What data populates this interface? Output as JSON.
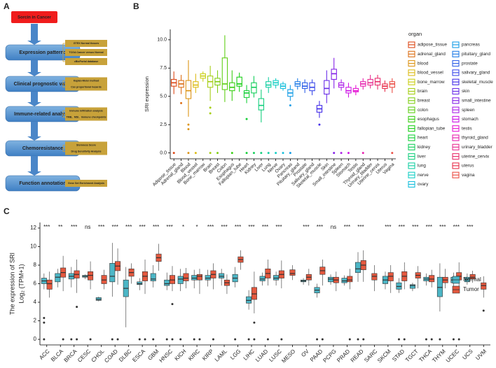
{
  "panel_labels": [
    "A",
    "B",
    "C"
  ],
  "flowchart": {
    "root": "Sorcin in Cancer",
    "steps": [
      {
        "label": "Expression patterns",
        "details": [
          "GTEX Normal tissues",
          "TCGA Cancer versus Normal",
          "cBioPortal database"
        ]
      },
      {
        "label": "Clinical prognostic value",
        "details": [
          "Kaplan-Meier method",
          "Cox proportional hazards"
        ]
      },
      {
        "label": "Immune-related analysis",
        "details": [
          "Immune infiltration analysis",
          "TMB、MSI、Immune checkpoints"
        ]
      },
      {
        "label": "Chemoresistance",
        "details": [
          "Stemness Score",
          "Drug Sensitivity Analysis"
        ]
      },
      {
        "label": "Function annotation",
        "details": [
          "Gene Set Enrichment Analysis"
        ]
      }
    ]
  },
  "chart_data": [
    {
      "type": "boxplot",
      "y_label": "SRI expression",
      "legend_title": "organ",
      "ylim": [
        -0.52,
        10.92
      ],
      "yticks": [
        {
          "value": 0,
          "label": "0.0"
        },
        {
          "value": 2.5,
          "label": "2.5"
        },
        {
          "value": 5,
          "label": "5.0"
        },
        {
          "value": 7.5,
          "label": "7.5"
        },
        {
          "value": 10,
          "label": "10.0"
        }
      ],
      "categories": [
        "Adipose_tissue",
        "Adrenal_gland",
        "Blood",
        "Blood_vessel",
        "Bone_marrow",
        "Brain",
        "Breast",
        "Colon",
        "Esophagus",
        "Fallopian_tube",
        "Heart",
        "Kidney",
        "Liver",
        "Lung",
        "Nerve",
        "Ovary",
        "Pancreas",
        "Pituitary_gland",
        "Prostate",
        "Salivary_gland",
        "Skeletal_muscle",
        "Skin",
        "Small_intestine",
        "Spleen",
        "Stomach",
        "Testis",
        "Thyroid_gland",
        "Urinary_bladder",
        "Uterine_cervix",
        "Uterus",
        "Vagina"
      ],
      "boxes": [
        {
          "name": "adipose_tissue",
          "color": "hsl(15,80%,48%)",
          "min": 5.2,
          "q1": 5.9,
          "median": 6.2,
          "q3": 6.5,
          "max": 7.2,
          "outliers": [
            0
          ]
        },
        {
          "name": "adrenal_gland",
          "color": "hsl(27,80%,48%)",
          "min": 5.2,
          "q1": 5.8,
          "median": 6.1,
          "q3": 6.4,
          "max": 6.9,
          "outliers": [
            4.4
          ]
        },
        {
          "name": "blood",
          "color": "hsl(38,80%,48%)",
          "min": 3.2,
          "q1": 4.8,
          "median": 5.5,
          "q3": 6.4,
          "max": 8.2,
          "outliers": [
            2.5,
            2.1,
            0
          ]
        },
        {
          "name": "blood_vessel",
          "color": "hsl(50,80%,48%)",
          "min": 5.3,
          "q1": 5.8,
          "median": 6.0,
          "q3": 6.3,
          "max": 7.0,
          "outliers": [
            0
          ]
        },
        {
          "name": "bone_marrow",
          "color": "hsl(61,80%,45%)",
          "min": 6.3,
          "q1": 6.6,
          "median": 6.8,
          "q3": 7.0,
          "max": 7.2,
          "outliers": []
        },
        {
          "name": "brain",
          "color": "hsl(73,80%,45%)",
          "min": 4.6,
          "q1": 5.8,
          "median": 6.3,
          "q3": 6.8,
          "max": 7.7,
          "outliers": [
            4.0,
            3.5,
            0
          ]
        },
        {
          "name": "breast",
          "color": "hsl(85,80%,45%)",
          "min": 5.3,
          "q1": 6.0,
          "median": 6.3,
          "q3": 6.6,
          "max": 7.3,
          "outliers": [
            0
          ]
        },
        {
          "name": "colon",
          "color": "hsl(96,80%,45%)",
          "min": 4.5,
          "q1": 5.6,
          "median": 6.1,
          "q3": 8.4,
          "max": 10.4,
          "outliers": []
        },
        {
          "name": "esophagus",
          "color": "hsl(108,80%,45%)",
          "min": 4.6,
          "q1": 5.5,
          "median": 5.8,
          "q3": 6.2,
          "max": 7.3,
          "outliers": [
            0
          ]
        },
        {
          "name": "fallopian_tube",
          "color": "hsl(119,80%,45%)",
          "min": 5.4,
          "q1": 5.9,
          "median": 6.1,
          "q3": 6.7,
          "max": 7.1,
          "outliers": []
        },
        {
          "name": "heart",
          "color": "hsl(131,80%,45%)",
          "min": 4.4,
          "q1": 4.9,
          "median": 5.3,
          "q3": 5.5,
          "max": 6.0,
          "outliers": [
            3.0,
            0
          ]
        },
        {
          "name": "kidney",
          "color": "hsl(143,80%,45%)",
          "min": 4.9,
          "q1": 5.3,
          "median": 5.8,
          "q3": 6.2,
          "max": 6.8,
          "outliers": [
            0
          ]
        },
        {
          "name": "liver",
          "color": "hsl(154,80%,45%)",
          "min": 2.7,
          "q1": 3.8,
          "median": 4.2,
          "q3": 4.8,
          "max": 5.6,
          "outliers": [
            0
          ]
        },
        {
          "name": "lung",
          "color": "hsl(166,80%,45%)",
          "min": 5.3,
          "q1": 5.8,
          "median": 6.0,
          "q3": 6.3,
          "max": 6.7,
          "outliers": [
            0
          ]
        },
        {
          "name": "nerve",
          "color": "hsl(177,80%,45%)",
          "min": 5.7,
          "q1": 6.0,
          "median": 6.2,
          "q3": 6.4,
          "max": 6.6,
          "outliers": [
            0
          ]
        },
        {
          "name": "ovary",
          "color": "hsl(189,80%,48%)",
          "min": 5.5,
          "q1": 5.7,
          "median": 5.9,
          "q3": 6.1,
          "max": 6.3,
          "outliers": [
            0
          ]
        },
        {
          "name": "pancreas",
          "color": "hsl(201,80%,50%)",
          "min": 4.6,
          "q1": 5.0,
          "median": 5.3,
          "q3": 5.6,
          "max": 6.0,
          "outliers": [
            4.2,
            0
          ]
        },
        {
          "name": "pituitary_gland",
          "color": "hsl(212,80%,52%)",
          "min": 5.6,
          "q1": 5.9,
          "median": 6.1,
          "q3": 6.3,
          "max": 6.6,
          "outliers": []
        },
        {
          "name": "prostate",
          "color": "hsl(224,80%,55%)",
          "min": 5.3,
          "q1": 5.7,
          "median": 5.9,
          "q3": 6.2,
          "max": 6.5,
          "outliers": []
        },
        {
          "name": "salivary_gland",
          "color": "hsl(235,80%,58%)",
          "min": 5.1,
          "q1": 5.5,
          "median": 5.8,
          "q3": 6.2,
          "max": 6.5,
          "outliers": []
        },
        {
          "name": "skeletal_muscle",
          "color": "hsl(247,80%,55%)",
          "min": 3.1,
          "q1": 3.6,
          "median": 3.9,
          "q3": 4.2,
          "max": 4.6,
          "outliers": [
            2.5
          ]
        },
        {
          "name": "skin",
          "color": "hsl(259,80%,55%)",
          "min": 4.4,
          "q1": 5.2,
          "median": 5.7,
          "q3": 6.4,
          "max": 7.3,
          "outliers": []
        },
        {
          "name": "small_intestine",
          "color": "hsl(270,80%,52%)",
          "min": 5.7,
          "q1": 6.5,
          "median": 7.0,
          "q3": 7.4,
          "max": 8.4,
          "outliers": [
            0
          ]
        },
        {
          "name": "spleen",
          "color": "hsl(282,80%,52%)",
          "min": 5.5,
          "q1": 5.8,
          "median": 6.0,
          "q3": 6.2,
          "max": 6.5,
          "outliers": [
            0
          ]
        },
        {
          "name": "stomach",
          "color": "hsl(293,80%,50%)",
          "min": 4.9,
          "q1": 5.3,
          "median": 5.5,
          "q3": 5.8,
          "max": 6.2,
          "outliers": [
            0
          ]
        },
        {
          "name": "testis",
          "color": "hsl(305,80%,50%)",
          "min": 5.1,
          "q1": 5.4,
          "median": 5.5,
          "q3": 5.7,
          "max": 6.0,
          "outliers": []
        },
        {
          "name": "thyroid_gland",
          "color": "hsl(317,80%,52%)",
          "min": 5.6,
          "q1": 5.9,
          "median": 6.1,
          "q3": 6.3,
          "max": 6.6,
          "outliers": [
            0
          ]
        },
        {
          "name": "urinary_bladder",
          "color": "hsl(328,80%,55%)",
          "min": 5.7,
          "q1": 6.0,
          "median": 6.2,
          "q3": 6.5,
          "max": 6.9,
          "outliers": []
        },
        {
          "name": "uterine_cervix",
          "color": "hsl(340,80%,55%)",
          "min": 5.6,
          "q1": 6.0,
          "median": 6.3,
          "q3": 6.6,
          "max": 6.9,
          "outliers": []
        },
        {
          "name": "uterus",
          "color": "hsl(351,80%,55%)",
          "min": 5.4,
          "q1": 5.7,
          "median": 5.9,
          "q3": 6.1,
          "max": 6.4,
          "outliers": []
        },
        {
          "name": "vagina",
          "color": "hsl(3,80%,60%)",
          "min": 5.3,
          "q1": 5.8,
          "median": 6.1,
          "q3": 6.3,
          "max": 6.6,
          "outliers": [
            0
          ]
        }
      ]
    },
    {
      "type": "grouped-boxplot",
      "y_label": "The expression of SRI",
      "y_label_2": "Log₂ (TPM+1)",
      "ylim": [
        -0.6,
        12.6
      ],
      "yticks": [
        0,
        2,
        4,
        6,
        8,
        10,
        12
      ],
      "categories": [
        "ACC",
        "BLCA",
        "BRCA",
        "CESC",
        "CHOL",
        "COAD",
        "DLBC",
        "ESCA",
        "GBM",
        "HNSC",
        "KICH",
        "KIRC",
        "KIRP",
        "LAML",
        "LGG",
        "LIHC",
        "LUAD",
        "LUSC",
        "MESO",
        "OV",
        "PAAD",
        "PCPG",
        "PRAD",
        "READ",
        "SARC",
        "SKCM",
        "STAD",
        "TGCT",
        "THCA",
        "THYM",
        "UCEC",
        "UCS",
        "UVM"
      ],
      "significance": [
        "***",
        "**",
        "***",
        "ns",
        "***",
        "***",
        "***",
        "***",
        "***",
        "***",
        "*",
        "*",
        "***",
        "***",
        "***",
        "***",
        "***",
        "***",
        null,
        "***",
        "***",
        "ns",
        "***",
        "***",
        null,
        "***",
        "***",
        "***",
        "***",
        "***",
        "***",
        "***",
        null
      ],
      "series": [
        {
          "name": "Normal",
          "color": "#4cb6c6",
          "min": [
            5.4,
            5.6,
            5.6,
            6.5,
            4.1,
            4.6,
            1.3,
            5.3,
            5.6,
            5.3,
            5.2,
            5.5,
            5.7,
            5.8,
            5.6,
            3.2,
            5.8,
            5.8,
            null,
            5.9,
            4.5,
            5.9,
            5.8,
            6.2,
            null,
            5.4,
            5.0,
            5.2,
            5.8,
            3.0,
            5.6,
            5.9,
            null
          ],
          "q1": [
            6.0,
            6.2,
            6.5,
            6.7,
            4.2,
            6.2,
            4.6,
            5.9,
            6.3,
            5.8,
            6.0,
            6.4,
            6.4,
            6.6,
            6.2,
            3.9,
            6.3,
            6.4,
            null,
            6.2,
            5.0,
            6.2,
            6.1,
            7.2,
            null,
            6.0,
            5.4,
            5.5,
            6.3,
            4.6,
            6.1,
            6.2,
            null
          ],
          "median": [
            6.3,
            6.7,
            6.8,
            6.8,
            4.3,
            6.8,
            5.5,
            6.0,
            6.5,
            6.0,
            6.5,
            6.6,
            6.6,
            6.8,
            6.6,
            4.2,
            6.5,
            6.6,
            null,
            6.3,
            5.3,
            6.5,
            6.3,
            7.6,
            null,
            6.4,
            5.7,
            5.8,
            6.5,
            5.6,
            6.4,
            6.5,
            null
          ],
          "q3": [
            6.6,
            7.1,
            7.1,
            6.9,
            4.5,
            8.2,
            6.4,
            6.2,
            7.1,
            6.4,
            6.8,
            6.9,
            6.9,
            7.1,
            7.0,
            4.6,
            6.8,
            6.9,
            null,
            6.4,
            5.6,
            6.7,
            6.6,
            8.3,
            null,
            6.8,
            6.1,
            5.9,
            6.7,
            6.7,
            6.7,
            6.7,
            null
          ],
          "max": [
            7.1,
            7.6,
            7.8,
            7.0,
            4.6,
            10.4,
            7.8,
            6.6,
            8.0,
            7.2,
            7.6,
            7.5,
            7.5,
            7.6,
            7.8,
            5.3,
            7.2,
            7.3,
            null,
            6.6,
            6.0,
            7.0,
            6.9,
            9.4,
            null,
            7.3,
            6.6,
            6.1,
            7.1,
            8.2,
            7.2,
            7.1,
            null
          ],
          "outliers": [
            [
              2.3,
              1.8,
              0
            ],
            [],
            [
              0
            ],
            [],
            [],
            [
              0
            ],
            [],
            [
              0
            ],
            [
              0
            ],
            [
              0
            ],
            [
              0
            ],
            [
              0
            ],
            [],
            [],
            [
              0
            ],
            [
              0
            ],
            [],
            [],
            [],
            [],
            [
              0
            ],
            [],
            [],
            [
              0
            ],
            [],
            [],
            [
              0
            ],
            [],
            [
              0
            ],
            [
              0
            ],
            [
              0
            ],
            [],
            []
          ]
        },
        {
          "name": "Tumor",
          "color": "#e4583e",
          "min": [
            4.5,
            5.2,
            5.0,
            5.4,
            5.4,
            5.9,
            6.0,
            4.9,
            7.4,
            5.2,
            5.5,
            4.9,
            5.4,
            4.9,
            7.5,
            2.8,
            5.8,
            5.5,
            6.4,
            5.8,
            5.8,
            5.2,
            5.4,
            6.2,
            5.2,
            5.0,
            5.4,
            5.5,
            5.6,
            5.5,
            5.6,
            6.1,
            4.5
          ],
          "q1": [
            5.4,
            6.7,
            6.6,
            6.4,
            6.0,
            7.4,
            6.8,
            6.3,
            8.4,
            6.0,
            6.3,
            6.4,
            6.6,
            5.8,
            8.3,
            4.3,
            6.6,
            6.6,
            6.9,
            6.4,
            7.0,
            6.1,
            6.2,
            7.5,
            6.4,
            6.3,
            6.3,
            6.6,
            6.2,
            6.1,
            6.4,
            6.5,
            5.4
          ],
          "median": [
            6.0,
            7.2,
            7.0,
            6.9,
            6.4,
            7.9,
            7.2,
            6.8,
            8.8,
            6.4,
            6.6,
            6.8,
            7.0,
            6.1,
            8.6,
            4.9,
            7.1,
            7.0,
            7.1,
            6.7,
            7.4,
            6.4,
            6.4,
            8.0,
            6.8,
            6.8,
            6.8,
            6.9,
            6.5,
            6.4,
            6.8,
            6.7,
            5.8
          ],
          "q3": [
            6.4,
            7.7,
            7.4,
            7.3,
            6.9,
            8.4,
            7.6,
            7.3,
            9.2,
            6.9,
            7.1,
            7.0,
            7.4,
            6.4,
            8.9,
            5.6,
            7.6,
            7.4,
            7.5,
            7.0,
            7.8,
            6.7,
            6.8,
            8.5,
            7.1,
            7.2,
            7.3,
            7.2,
            6.9,
            6.7,
            7.2,
            7.0,
            6.1
          ],
          "max": [
            7.3,
            9.0,
            8.6,
            8.4,
            7.5,
            9.8,
            8.2,
            8.6,
            10.3,
            7.9,
            7.7,
            7.6,
            8.2,
            7.0,
            9.6,
            7.3,
            8.6,
            8.5,
            8.0,
            7.6,
            8.6,
            7.3,
            7.6,
            9.6,
            8.0,
            8.0,
            8.3,
            7.9,
            7.5,
            7.6,
            8.3,
            7.4,
            6.8
          ],
          "outliers": [
            [],
            [
              0
            ],
            [
              3.5,
              0
            ],
            [
              0
            ],
            [],
            [
              0
            ],
            [],
            [
              0
            ],
            [],
            [
              3.8,
              0
            ],
            [],
            [
              0
            ],
            [
              0
            ],
            [],
            [],
            [
              1.8,
              0
            ],
            [
              0
            ],
            [
              0
            ],
            [],
            [],
            [
              0
            ],
            [],
            [
              0
            ],
            [
              0
            ],
            [],
            [],
            [
              0
            ],
            [],
            [
              0
            ],
            [],
            [
              0
            ],
            [],
            [
              3.1
            ]
          ]
        }
      ]
    }
  ]
}
